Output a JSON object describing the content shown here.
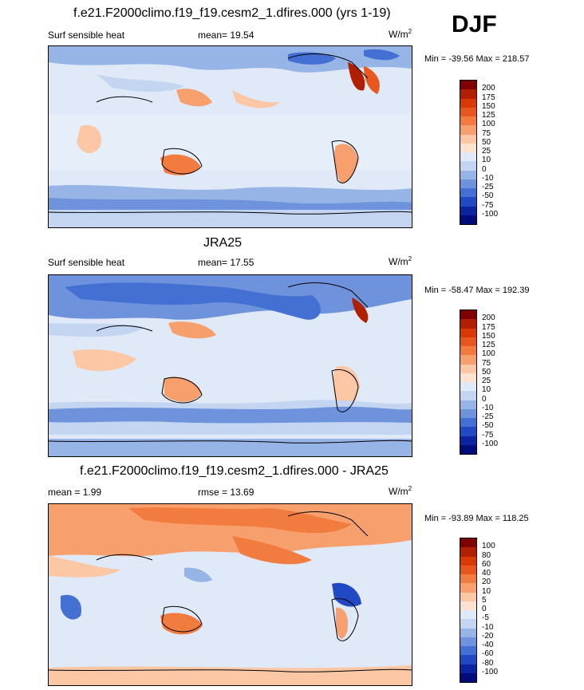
{
  "season": "DJF",
  "panels": [
    {
      "title": "f.e21.F2000climo.f19_f19.cesm2_1.dfires.000 (yrs 1-19)",
      "left_label": "Surf sensible heat",
      "center_label": "mean=  19.54",
      "units": "W/m",
      "units_sup": "2",
      "minmax": "Min = -39.56 Max = 218.57",
      "colorbar_ticks": [
        "200",
        "175",
        "150",
        "125",
        "100",
        "75",
        "50",
        "25",
        "10",
        "0",
        "-10",
        "-25",
        "-50",
        "-75",
        "-100"
      ]
    },
    {
      "title": "JRA25",
      "left_label": "Surf sensible heat",
      "center_label": "mean=  17.55",
      "units": "W/m",
      "units_sup": "2",
      "minmax": "Min = -58.47 Max = 192.39",
      "colorbar_ticks": [
        "200",
        "175",
        "150",
        "125",
        "100",
        "75",
        "50",
        "25",
        "10",
        "0",
        "-10",
        "-25",
        "-50",
        "-75",
        "-100"
      ]
    },
    {
      "title": "f.e21.F2000climo.f19_f19.cesm2_1.dfires.000 - JRA25",
      "left_label": "mean =   1.99",
      "center_label": "rmse =  13.69",
      "units": "W/m",
      "units_sup": "2",
      "minmax": "Min = -93.89 Max = 118.25",
      "colorbar_ticks": [
        "100",
        "80",
        "60",
        "40",
        "20",
        "10",
        "5",
        "0",
        "-5",
        "-10",
        "-20",
        "-40",
        "-60",
        "-80",
        "-100"
      ]
    }
  ],
  "colors": {
    "palette": [
      "#7f0000",
      "#b02000",
      "#d93a05",
      "#e8581e",
      "#f27c40",
      "#f7a06e",
      "#fbc7a4",
      "#fde3cf",
      "#dfe9f7",
      "#c3d5f0",
      "#97b4e6",
      "#6e93dc",
      "#4470d4",
      "#2249c4",
      "#0d24a0",
      "#000c7a"
    ]
  }
}
